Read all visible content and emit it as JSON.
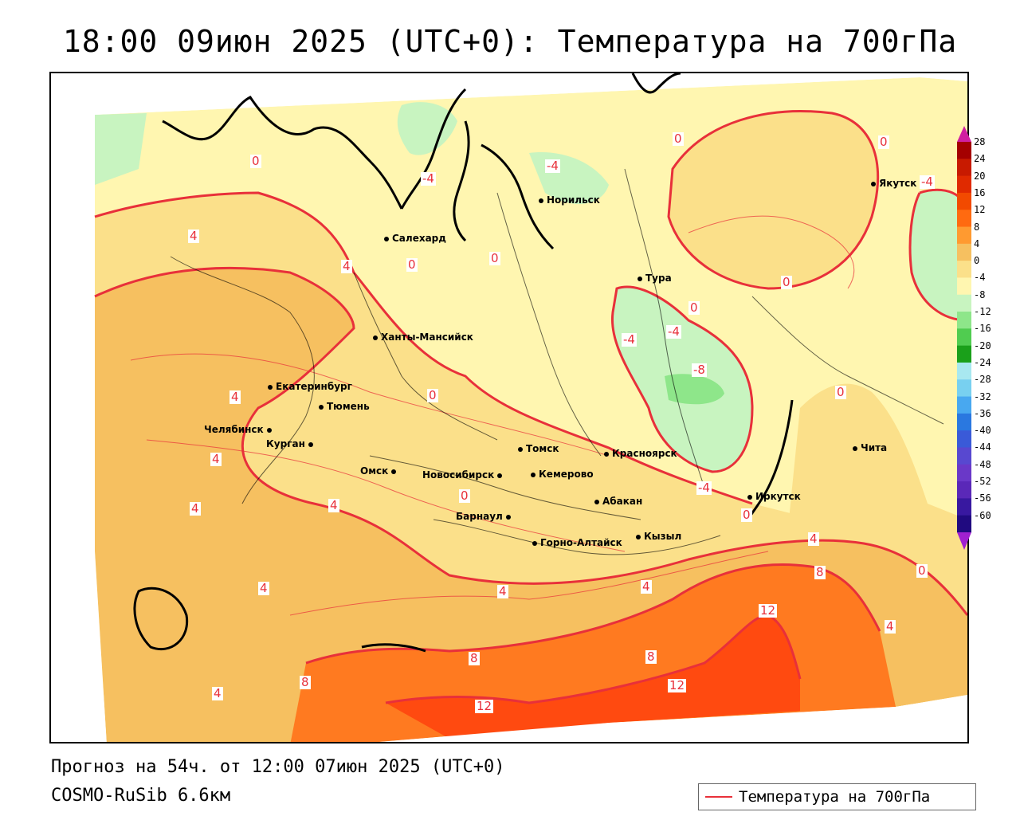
{
  "title": "18:00 09июн 2025 (UTC+0): Температура на 700гПа",
  "footer": {
    "forecast": "Прогноз на 54ч. от 12:00 07июн 2025 (UTC+0)",
    "model": "COSMO-RuSib 6.6км"
  },
  "legend": {
    "label": "Температура на 700гПа",
    "color": "#e8303a"
  },
  "colorbar": {
    "ticks": [
      "28",
      "24",
      "20",
      "16",
      "12",
      "8",
      "4",
      "0",
      "-4",
      "-8",
      "-12",
      "-16",
      "-20",
      "-24",
      "-28",
      "-32",
      "-36",
      "-40",
      "-44",
      "-48",
      "-52",
      "-56",
      "-60"
    ],
    "colors": [
      "#a40000",
      "#c81a00",
      "#e02a00",
      "#f24a00",
      "#ff6a10",
      "#ff9a30",
      "#f6c060",
      "#fbe08a",
      "#fff6b0",
      "#c8f4c0",
      "#8ee68a",
      "#50cc50",
      "#1aa01a",
      "#a8e8f0",
      "#78d0f0",
      "#48a8f0",
      "#2a78e0",
      "#3a5ad8",
      "#5848d0",
      "#6a38c8",
      "#5a28b8",
      "#3818a0",
      "#200a80"
    ]
  },
  "cities": [
    {
      "name": "Салехард",
      "dot": "dot-left"
    },
    {
      "name": "Норильск",
      "dot": "dot-left"
    },
    {
      "name": "Якутск",
      "dot": "dot-left"
    },
    {
      "name": "Тура",
      "dot": "dot-left"
    },
    {
      "name": "Ханты-Мансийск",
      "dot": "dot-left"
    },
    {
      "name": "Екатеринбург",
      "dot": "dot-left"
    },
    {
      "name": "Тюмень",
      "dot": "dot-left"
    },
    {
      "name": "Челябинск",
      "dot": "dot-right"
    },
    {
      "name": "Курган",
      "dot": "dot-right"
    },
    {
      "name": "Омск",
      "dot": "dot-right"
    },
    {
      "name": "Новосибирск",
      "dot": "dot-right"
    },
    {
      "name": "Томск",
      "dot": "dot-left"
    },
    {
      "name": "Кемерово",
      "dot": "dot-left"
    },
    {
      "name": "Красноярск",
      "dot": "dot-left"
    },
    {
      "name": "Абакан",
      "dot": "dot-left"
    },
    {
      "name": "Иркутск",
      "dot": "dot-left"
    },
    {
      "name": "Чита",
      "dot": "dot-left"
    },
    {
      "name": "Барнаул",
      "dot": "dot-right"
    },
    {
      "name": "Горно-Алтайск",
      "dot": "dot-left"
    },
    {
      "name": "Кызыл",
      "dot": "dot-left"
    }
  ],
  "contour_labels": [
    "0",
    "-4",
    "-4",
    "0",
    "0",
    "-4",
    "4",
    "0",
    "0",
    "0",
    "-4",
    "-4",
    "0",
    "4",
    "0",
    "-8",
    "0",
    "4",
    "4",
    "4",
    "0",
    "-4",
    "0",
    "4",
    "8",
    "4",
    "4",
    "0",
    "4",
    "4",
    "12",
    "8",
    "8",
    "12",
    "4",
    "8",
    "12",
    "4"
  ]
}
